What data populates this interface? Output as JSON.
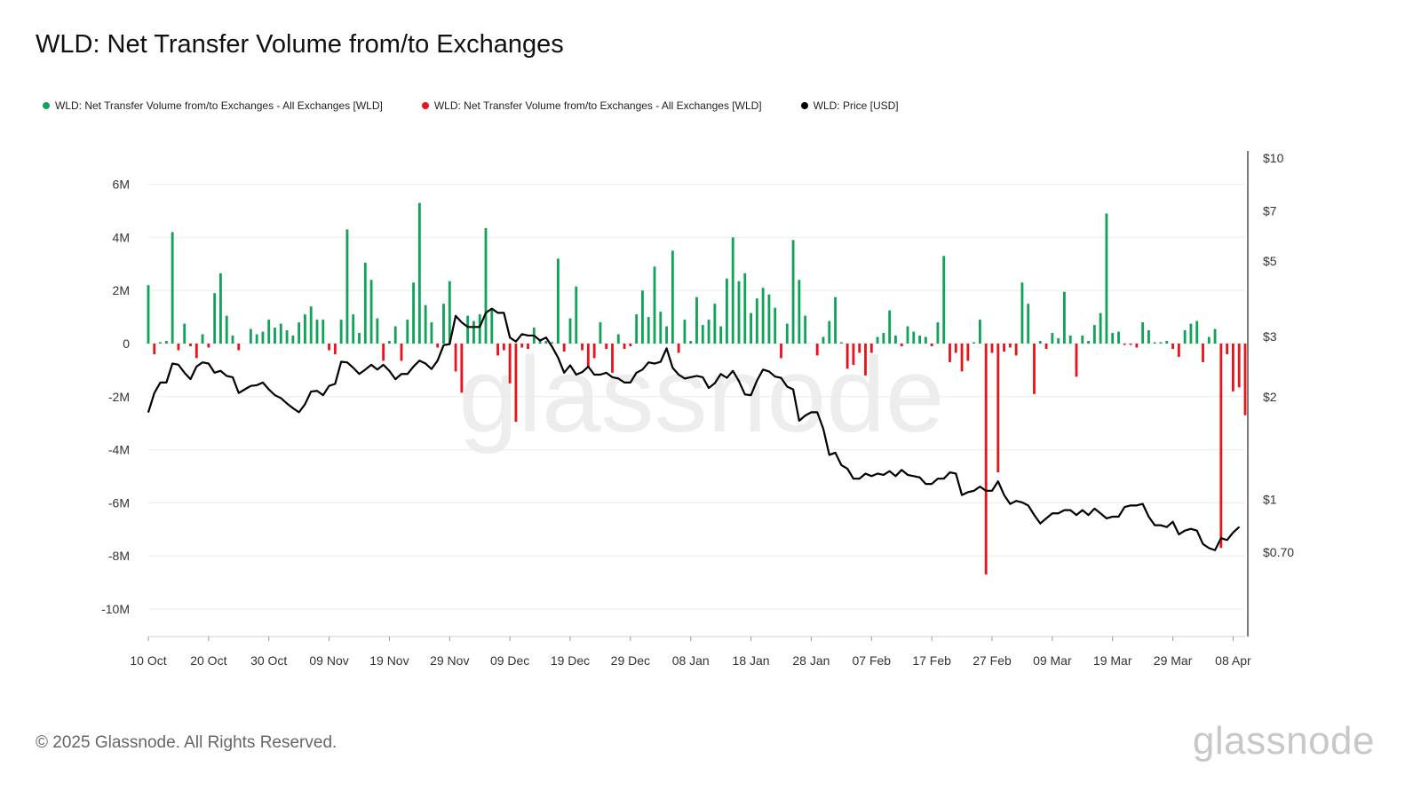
{
  "header": {
    "title": "WLD: Net Transfer Volume from/to Exchanges"
  },
  "legend": [
    {
      "label": "WLD: Net Transfer Volume from/to Exchanges - All Exchanges [WLD]",
      "color": "#12a35a"
    },
    {
      "label": "WLD: Net Transfer Volume from/to Exchanges - All Exchanges [WLD]",
      "color": "#e8141b"
    },
    {
      "label": "WLD: Price [USD]",
      "color": "#000000"
    }
  ],
  "footer": {
    "copyright": "© 2025 Glassnode. All Rights Reserved.",
    "logo": "glassnode",
    "watermark": "glassnode"
  },
  "chart_data": {
    "type": "bar",
    "title": "WLD: Net Transfer Volume from/to Exchanges",
    "x_start_label": "10 Oct",
    "x_tick_labels": [
      "10 Oct",
      "20 Oct",
      "30 Oct",
      "09 Nov",
      "19 Nov",
      "29 Nov",
      "09 Dec",
      "19 Dec",
      "29 Dec",
      "08 Jan",
      "18 Jan",
      "28 Jan",
      "07 Feb",
      "17 Feb",
      "27 Feb",
      "09 Mar",
      "19 Mar",
      "29 Mar",
      "08 Apr"
    ],
    "left_axis": {
      "label": "",
      "ylim": [
        -11000000,
        7000000
      ],
      "ticks": [
        6000000,
        4000000,
        2000000,
        0,
        -2000000,
        -4000000,
        -6000000,
        -8000000,
        -10000000
      ],
      "tick_labels": [
        "6M",
        "4M",
        "2M",
        "0",
        "-2M",
        "-4M",
        "-6M",
        "-8M",
        "-10M"
      ]
    },
    "right_axis": {
      "label": "",
      "scale": "log",
      "ylim": [
        0.6,
        10
      ],
      "ticks": [
        10,
        7,
        5,
        3,
        2,
        1,
        0.7
      ],
      "tick_labels": [
        "$10",
        "$7",
        "$5",
        "$3",
        "$2",
        "$1",
        "$0.70"
      ]
    },
    "colors": {
      "inflow": "#12a35a",
      "outflow": "#e8141b",
      "price": "#000000",
      "grid": "#ececec"
    },
    "grid": true,
    "legend_position": "top-left",
    "series": [
      {
        "name": "WLD: Net Transfer Volume from/to Exchanges - All Exchanges [WLD]",
        "type": "bar",
        "axis": "left",
        "values": [
          2200000,
          -400000,
          50000,
          100000,
          4200000,
          -250000,
          750000,
          -100000,
          -550000,
          350000,
          -150000,
          1900000,
          2650000,
          1050000,
          300000,
          -250000,
          0,
          550000,
          350000,
          450000,
          900000,
          600000,
          750000,
          500000,
          300000,
          800000,
          1100000,
          1400000,
          900000,
          900000,
          -250000,
          -400000,
          900000,
          4300000,
          1100000,
          400000,
          3050000,
          2400000,
          950000,
          -650000,
          100000,
          650000,
          -650000,
          900000,
          2300000,
          5300000,
          1450000,
          800000,
          -150000,
          1500000,
          2350000,
          -1050000,
          -1850000,
          1050000,
          850000,
          1100000,
          4350000,
          1250000,
          -450000,
          -250000,
          -1500000,
          -2950000,
          -150000,
          -200000,
          600000,
          150000,
          100000,
          50000,
          3200000,
          -300000,
          950000,
          2150000,
          -250000,
          -900000,
          -550000,
          800000,
          -200000,
          -1100000,
          350000,
          -200000,
          -100000,
          1100000,
          2000000,
          1000000,
          2900000,
          1200000,
          650000,
          3500000,
          -350000,
          900000,
          100000,
          1750000,
          700000,
          900000,
          1500000,
          650000,
          2450000,
          4000000,
          2350000,
          2650000,
          1150000,
          1700000,
          2100000,
          1850000,
          1350000,
          -550000,
          750000,
          3900000,
          2400000,
          1050000,
          0,
          -450000,
          250000,
          850000,
          1750000,
          50000,
          -950000,
          -800000,
          -350000,
          -1200000,
          -350000,
          250000,
          400000,
          1250000,
          300000,
          -100000,
          650000,
          450000,
          300000,
          250000,
          -100000,
          800000,
          3300000,
          -700000,
          -350000,
          -1050000,
          -650000,
          50000,
          900000,
          -8700000,
          -350000,
          -4850000,
          -300000,
          -150000,
          -450000,
          2300000,
          1500000,
          -1900000,
          100000,
          -200000,
          400000,
          200000,
          1950000,
          300000,
          -1250000,
          300000,
          100000,
          700000,
          1150000,
          4900000,
          400000,
          450000,
          -50000,
          -50000,
          -150000,
          800000,
          500000,
          50000,
          50000,
          100000,
          -200000,
          -500000,
          500000,
          750000,
          850000,
          -700000,
          250000,
          550000,
          -7700000,
          -400000,
          -1800000,
          -1650000,
          -2700000
        ]
      },
      {
        "name": "WLD: Price [USD]",
        "type": "line",
        "axis": "right",
        "values": [
          1.8,
          2.05,
          2.2,
          2.2,
          2.5,
          2.48,
          2.35,
          2.25,
          2.45,
          2.52,
          2.5,
          2.35,
          2.38,
          2.3,
          2.28,
          2.05,
          2.1,
          2.15,
          2.16,
          2.2,
          2.1,
          2.02,
          1.98,
          1.91,
          1.85,
          1.8,
          1.9,
          2.07,
          2.08,
          2.02,
          2.15,
          2.18,
          2.53,
          2.52,
          2.43,
          2.33,
          2.4,
          2.48,
          2.4,
          2.48,
          2.38,
          2.25,
          2.33,
          2.33,
          2.45,
          2.55,
          2.5,
          2.41,
          2.55,
          2.83,
          2.85,
          3.45,
          3.3,
          3.2,
          3.2,
          3.2,
          3.52,
          3.62,
          3.52,
          3.52,
          2.98,
          2.9,
          3.05,
          3.02,
          3.02,
          2.92,
          2.98,
          2.8,
          2.6,
          2.35,
          2.47,
          2.32,
          2.36,
          2.45,
          2.32,
          2.32,
          2.35,
          2.28,
          2.26,
          2.2,
          2.2,
          2.35,
          2.4,
          2.52,
          2.5,
          2.53,
          2.77,
          2.43,
          2.32,
          2.26,
          2.28,
          2.3,
          2.28,
          2.12,
          2.19,
          2.33,
          2.27,
          2.38,
          2.22,
          2.03,
          2.02,
          2.23,
          2.4,
          2.37,
          2.29,
          2.27,
          2.14,
          2.1,
          1.7,
          1.76,
          1.8,
          1.8,
          1.61,
          1.35,
          1.37,
          1.26,
          1.23,
          1.15,
          1.15,
          1.19,
          1.17,
          1.19,
          1.18,
          1.21,
          1.17,
          1.22,
          1.18,
          1.17,
          1.16,
          1.11,
          1.11,
          1.15,
          1.15,
          1.2,
          1.19,
          1.03,
          1.05,
          1.06,
          1.09,
          1.06,
          1.06,
          1.13,
          1.03,
          0.97,
          0.99,
          0.98,
          0.96,
          0.9,
          0.85,
          0.88,
          0.91,
          0.91,
          0.93,
          0.93,
          0.9,
          0.93,
          0.9,
          0.94,
          0.91,
          0.88,
          0.89,
          0.89,
          0.95,
          0.96,
          0.96,
          0.97,
          0.89,
          0.84,
          0.84,
          0.83,
          0.86,
          0.79,
          0.81,
          0.82,
          0.81,
          0.74,
          0.72,
          0.71,
          0.77,
          0.76,
          0.8,
          0.83
        ]
      }
    ]
  }
}
